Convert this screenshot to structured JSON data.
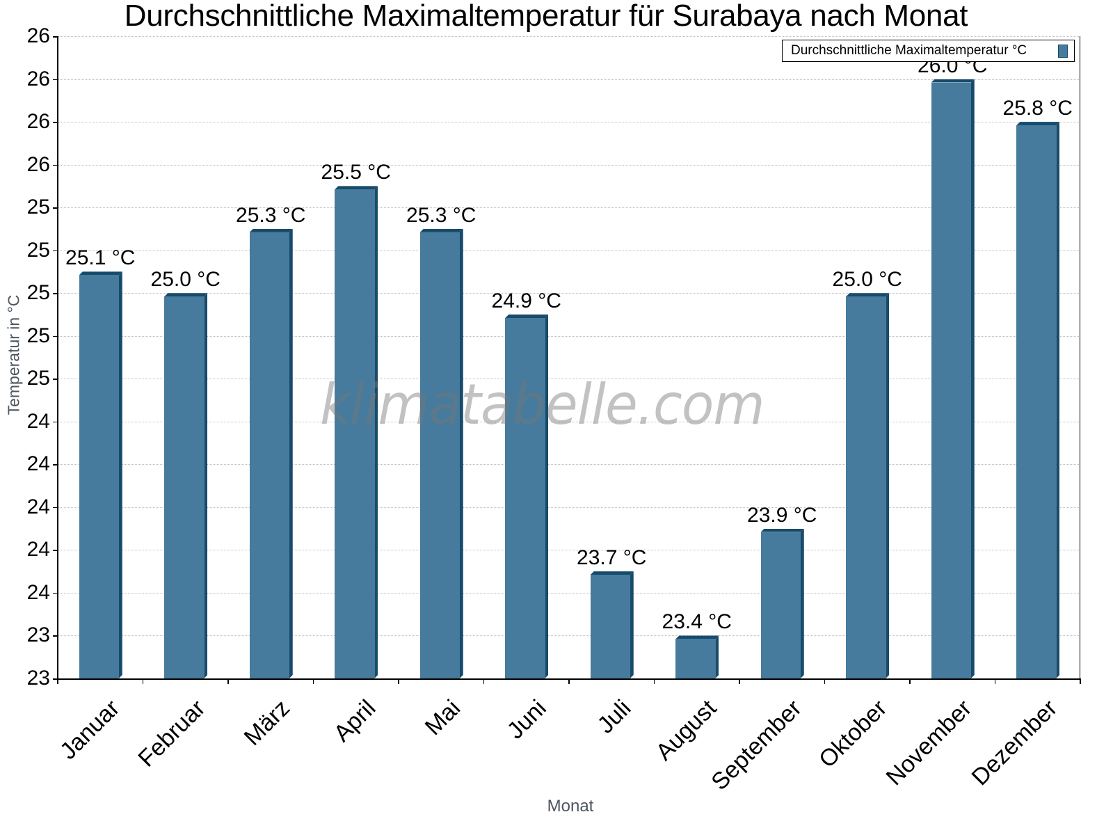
{
  "chart_data": {
    "type": "bar",
    "title": "Durchschnittliche Maximaltemperatur für Surabaya nach Monat",
    "xlabel": "Monat",
    "ylabel": "Temperatur in °C",
    "categories": [
      "Januar",
      "Februar",
      "März",
      "April",
      "Mai",
      "Juni",
      "Juli",
      "August",
      "September",
      "Oktober",
      "November",
      "Dezember"
    ],
    "series": [
      {
        "name": "Durchschnittliche Maximaltemperatur °C",
        "values": [
          25.1,
          25.0,
          25.3,
          25.5,
          25.3,
          24.9,
          23.7,
          23.4,
          23.9,
          25.0,
          26.0,
          25.8
        ],
        "labels": [
          "25.1 °C",
          "25.0 °C",
          "25.3 °C",
          "25.5 °C",
          "25.3 °C",
          "24.9 °C",
          "23.7 °C",
          "23.4 °C",
          "23.9 °C",
          "25.0 °C",
          "26.0 °C",
          "25.8 °C"
        ],
        "color": "#467b9d",
        "edge_color": "#174b6b"
      }
    ],
    "ylim": [
      23.2,
      26.2
    ],
    "ytick_values": [
      23.2,
      23.4,
      23.6,
      23.8,
      24.0,
      24.2,
      24.4,
      24.6,
      24.8,
      25.0,
      25.2,
      25.4,
      25.6,
      25.8,
      26.0,
      26.2
    ],
    "ytick_labels": [
      "23",
      "23",
      "24",
      "24",
      "24",
      "24",
      "24",
      "25",
      "25",
      "25",
      "25",
      "25",
      "26",
      "26",
      "26",
      "26"
    ],
    "grid": true,
    "grid_style": "dotted horizontal",
    "legend_position": "top-right",
    "watermark": "klimatabelle.com"
  },
  "title": "Durchschnittliche Maximaltemperatur für Surabaya nach Monat",
  "axes": {
    "x_title": "Monat",
    "y_title": "Temperatur in °C"
  },
  "legend": {
    "label": "Durchschnittliche Maximaltemperatur °C"
  },
  "watermark": "klimatabelle.com"
}
